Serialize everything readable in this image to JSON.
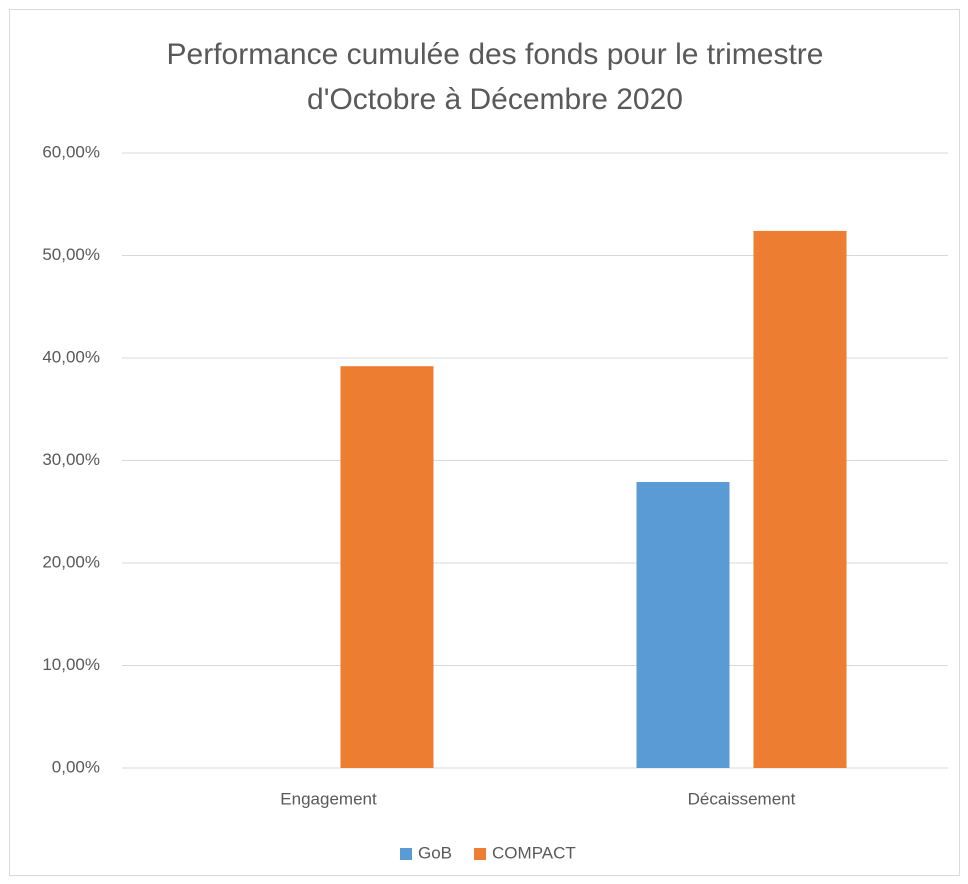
{
  "chart_data": {
    "type": "bar",
    "title": [
      "Performance cumulée des fonds pour le trimestre",
      "d'Octobre à Décembre 2020"
    ],
    "categories": [
      "Engagement",
      "Décaissement"
    ],
    "series": [
      {
        "name": "GoB",
        "color": "#5b9bd5",
        "values": [
          0,
          27.9
        ]
      },
      {
        "name": "COMPACT",
        "color": "#ed7d31",
        "values": [
          39.2,
          52.4
        ]
      }
    ],
    "ylim": [
      0,
      60
    ],
    "yticks": [
      {
        "value": 0,
        "label": "0,00%"
      },
      {
        "value": 10,
        "label": "10,00%"
      },
      {
        "value": 20,
        "label": "20,00%"
      },
      {
        "value": 30,
        "label": "30,00%"
      },
      {
        "value": 40,
        "label": "40,00%"
      },
      {
        "value": 50,
        "label": "50,00%"
      },
      {
        "value": 60,
        "label": "60,00%"
      }
    ],
    "grid": true,
    "legend": "bottom"
  }
}
